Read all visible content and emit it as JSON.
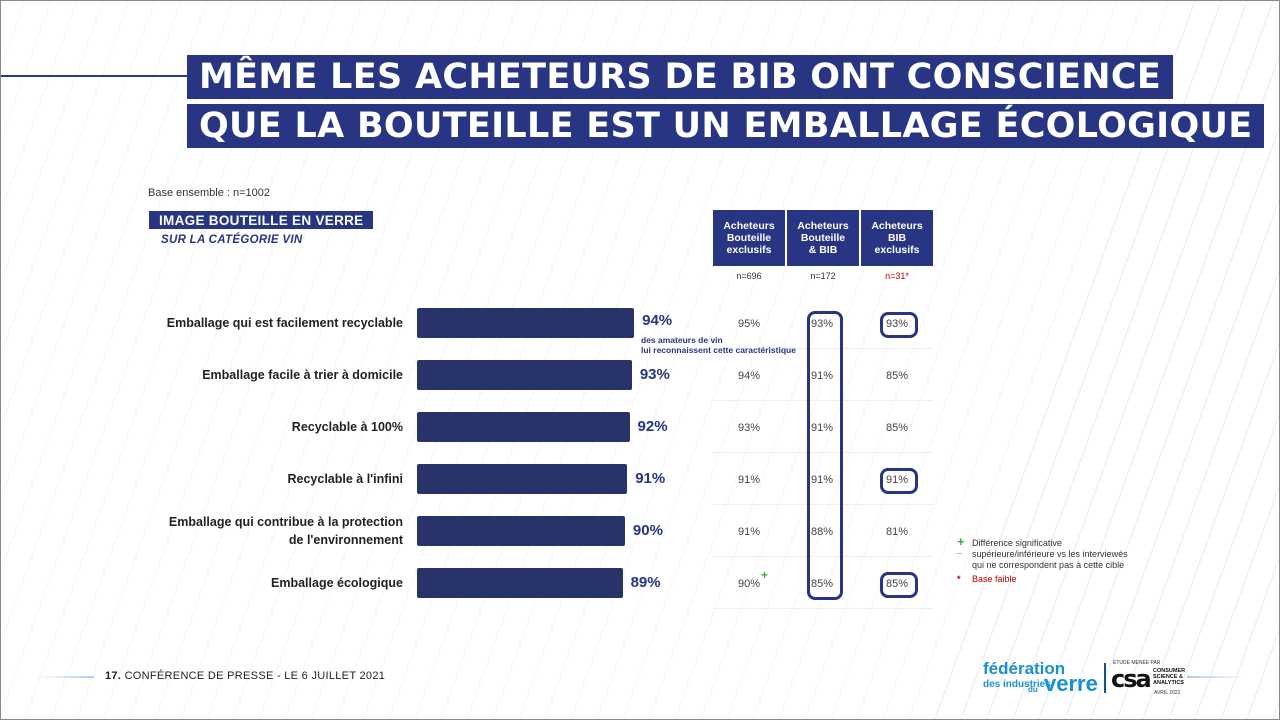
{
  "title": {
    "line1": "MÊME LES ACHETEURS DE BIB ONT CONSCIENCE",
    "line2": "QUE LA BOUTEILLE EST UN EMBALLAGE ÉCOLOGIQUE"
  },
  "base_text": "Base ensemble : n=1002",
  "section": {
    "banner": "IMAGE BOUTEILLE EN VERRE",
    "subtitle": "SUR LA CATÉGORIE VIN"
  },
  "columns": [
    {
      "label_lines": [
        "Acheteurs",
        "Bouteille",
        "exclusifs"
      ],
      "n": "n=696",
      "weak_base": false
    },
    {
      "label_lines": [
        "Acheteurs",
        "Bouteille",
        "& BIB"
      ],
      "n": "n=172",
      "weak_base": false
    },
    {
      "label_lines": [
        "Acheteurs",
        "BIB",
        "exclusifs"
      ],
      "n": "n=31*",
      "weak_base": true
    }
  ],
  "note": {
    "line1": "des amateurs de vin",
    "line2": "lui reconnaissent cette caractéristique"
  },
  "legend": {
    "plus_symbol": "+",
    "minus_symbol": "_",
    "star_symbol": "*",
    "line1": "Différence significative",
    "line2": "supérieure/inférieure vs les interviewés",
    "line3": "qui ne correspondent pas à cette cible",
    "weak_base": "Base faible"
  },
  "footer": {
    "page_number": "17.",
    "text": "CONFÉRENCE DE PRESSE - LE 6 JUILLET 2021",
    "fed_logo_line1": "fédération",
    "fed_logo_line2": "des industries",
    "fed_logo_du": "du",
    "fed_logo_verre": "verre",
    "csa_top": "ÉTUDE MENÉE PAR",
    "csa_logo": "csa",
    "csa_side_1": "CONSUMER",
    "csa_side_2": "SCIENCE &",
    "csa_side_3": "ANALYTICS",
    "csa_date": "AVRIL 2021"
  },
  "colors": {
    "brand_navy": "#283582",
    "bar_fill": "#283469",
    "significant_plus": "#2db34a",
    "weak_base_red": "#c00000",
    "logo_blue": "#1a8fd6"
  },
  "chart_data": {
    "type": "bar",
    "orientation": "horizontal",
    "title": "IMAGE BOUTEILLE EN VERRE — SUR LA CATÉGORIE VIN",
    "xlabel": "",
    "ylabel": "",
    "xlim": [
      0,
      100
    ],
    "unit": "%",
    "categories": [
      "Emballage qui est facilement recyclable",
      "Emballage facile à trier à domicile",
      "Recyclable à 100%",
      "Recyclable à l'infini",
      "Emballage qui contribue à la protection de l'environnement",
      "Emballage écologique"
    ],
    "category_lines": [
      [
        "Emballage qui est facilement recyclable"
      ],
      [
        "Emballage facile à trier à domicile"
      ],
      [
        "Recyclable à 100%"
      ],
      [
        "Recyclable à l'infini"
      ],
      [
        "Emballage qui contribue à la protection",
        "de l'environnement"
      ],
      [
        "Emballage écologique"
      ]
    ],
    "values": [
      94,
      93,
      92,
      91,
      90,
      89
    ],
    "value_labels": [
      "94%",
      "93%",
      "92%",
      "91%",
      "90%",
      "89%"
    ],
    "table_series": [
      {
        "name": "Acheteurs Bouteille exclusifs",
        "values": [
          "95%",
          "94%",
          "93%",
          "91%",
          "91%",
          "90%"
        ],
        "significant_plus": [
          false,
          false,
          false,
          false,
          false,
          true
        ],
        "circled": [
          false,
          false,
          false,
          false,
          false,
          false
        ]
      },
      {
        "name": "Acheteurs Bouteille & BIB",
        "values": [
          "93%",
          "91%",
          "91%",
          "91%",
          "88%",
          "85%"
        ],
        "significant_plus": [
          false,
          false,
          false,
          false,
          false,
          false
        ],
        "column_highlighted": true
      },
      {
        "name": "Acheteurs BIB exclusifs",
        "values": [
          "93%",
          "85%",
          "85%",
          "91%",
          "81%",
          "85%"
        ],
        "significant_plus": [
          false,
          false,
          false,
          false,
          false,
          false
        ],
        "circled": [
          true,
          false,
          false,
          true,
          false,
          true
        ]
      }
    ],
    "grid": false,
    "legend_position": "bottom-right"
  }
}
